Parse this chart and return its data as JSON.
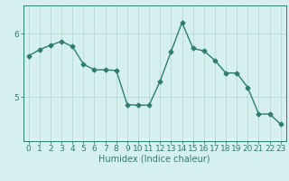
{
  "x": [
    0,
    1,
    2,
    3,
    4,
    5,
    6,
    7,
    8,
    9,
    10,
    11,
    12,
    13,
    14,
    15,
    16,
    17,
    18,
    19,
    20,
    21,
    22,
    23
  ],
  "y": [
    5.65,
    5.75,
    5.82,
    5.88,
    5.8,
    5.52,
    5.43,
    5.43,
    5.42,
    4.88,
    4.87,
    4.87,
    5.25,
    5.72,
    6.18,
    5.77,
    5.73,
    5.58,
    5.38,
    5.38,
    5.15,
    4.73,
    4.73,
    4.57
  ],
  "line_color": "#2e7d6e",
  "marker": "D",
  "marker_size": 2.5,
  "bg_color": "#d6f0f0",
  "grid_color": "#b8d8d8",
  "xlabel": "Humidex (Indice chaleur)",
  "xlabel_fontsize": 7,
  "yticks": [
    5,
    6
  ],
  "ylim": [
    4.3,
    6.45
  ],
  "xlim": [
    -0.5,
    23.5
  ],
  "tick_fontsize": 6.5,
  "line_width": 1.0
}
